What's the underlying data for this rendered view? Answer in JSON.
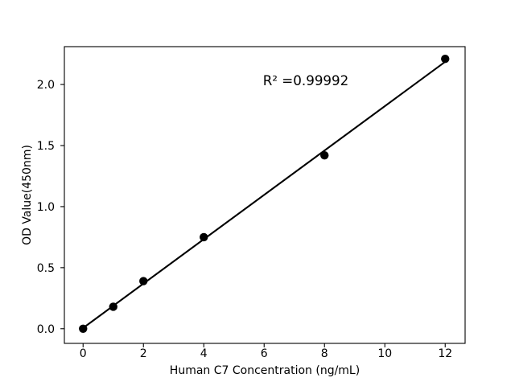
{
  "figure": {
    "background_color": "#ffffff",
    "foreground_color": "#000000"
  },
  "chart_data": {
    "type": "scatter",
    "title": "",
    "xlabel": "Human C7 Concentration (ng/mL)",
    "ylabel": "OD Value(450nm)",
    "annotation": "R² =0.99992",
    "points": {
      "name": "standard-curve-points",
      "x": [
        0,
        1,
        2,
        4,
        8,
        12
      ],
      "y": [
        0.0,
        0.18,
        0.39,
        0.75,
        1.42,
        2.21
      ]
    },
    "fit_line": {
      "name": "linear-fit",
      "x": [
        0,
        12
      ],
      "y": [
        0.006,
        2.186
      ]
    },
    "xticks": {
      "values": [
        0,
        2,
        4,
        6,
        8,
        10,
        12
      ],
      "labels": [
        "0",
        "2",
        "4",
        "6",
        "8",
        "10",
        "12"
      ]
    },
    "yticks": {
      "values": [
        0.0,
        0.5,
        1.0,
        1.5,
        2.0
      ],
      "labels": [
        "0.0",
        "0.5",
        "1.0",
        "1.5",
        "2.0"
      ]
    },
    "xlim": [
      -0.62,
      12.66
    ],
    "ylim": [
      -0.12,
      2.31
    ],
    "grid": false,
    "legend": null,
    "marker_color": "#000000",
    "line_color": "#000000",
    "spine_color": "#000000"
  }
}
